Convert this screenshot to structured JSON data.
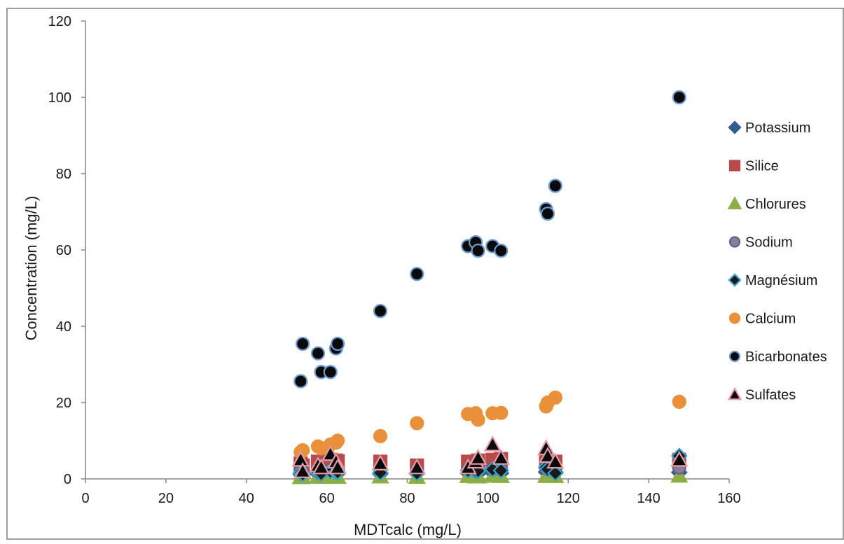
{
  "chart_data": {
    "type": "scatter",
    "title": "",
    "xlabel": "MDTcalc (mg/L)",
    "ylabel": "Concentration (mg/L)",
    "xlim": [
      0,
      160
    ],
    "ylim": [
      0,
      120
    ],
    "xticks": [
      "0",
      "20",
      "40",
      "60",
      "80",
      "100",
      "120",
      "140",
      "160"
    ],
    "yticks": [
      "0",
      "20",
      "40",
      "60",
      "80",
      "100",
      "120"
    ],
    "grid": false,
    "legend_position": "right",
    "x": [
      53.5,
      54.0,
      57.8,
      58.6,
      60.9,
      62.3,
      62.7,
      73.3,
      82.4,
      95.1,
      97.0,
      97.6,
      101.2,
      103.3,
      114.5,
      114.9,
      116.8,
      147.6
    ],
    "series": [
      {
        "name": "Potassium",
        "marker": "diamond",
        "color": "#2e5b91",
        "stroke": "#2e5b91",
        "values": [
          1.2,
          1.0,
          1.3,
          1.1,
          1.5,
          1.2,
          1.4,
          1.3,
          1.4,
          1.5,
          1.3,
          1.4,
          1.6,
          1.5,
          1.8,
          1.6,
          1.7,
          1.7
        ]
      },
      {
        "name": "Silice",
        "marker": "square",
        "color": "#b94a4a",
        "stroke": "#b94a4a",
        "values": [
          4.0,
          3.5,
          4.5,
          4.2,
          5.0,
          4.8,
          4.6,
          4.5,
          3.5,
          4.5,
          4.5,
          4.8,
          5.0,
          5.2,
          5.0,
          4.6,
          4.5,
          5.0
        ]
      },
      {
        "name": "Chlorures",
        "marker": "triangle",
        "color": "#8cae45",
        "stroke": "#8cae45",
        "values": [
          0.4,
          0.5,
          0.6,
          0.5,
          0.7,
          0.6,
          0.5,
          0.6,
          0.5,
          0.7,
          0.6,
          0.6,
          0.8,
          0.7,
          0.8,
          0.7,
          0.7,
          0.8
        ]
      },
      {
        "name": "Sodium",
        "marker": "circle",
        "color": "#8a7ea0",
        "stroke": "#6a5e80",
        "values": [
          2.0,
          1.8,
          2.2,
          2.0,
          2.4,
          2.1,
          2.3,
          2.2,
          2.1,
          2.5,
          2.3,
          2.4,
          2.6,
          2.5,
          2.8,
          2.6,
          2.7,
          3.0
        ]
      },
      {
        "name": "Magnésium",
        "marker": "diamond",
        "color": "#1a1a1a",
        "stroke": "#3aa0c8",
        "values": [
          1.5,
          1.3,
          1.6,
          1.4,
          2.0,
          1.7,
          1.8,
          1.6,
          1.5,
          2.2,
          2.0,
          2.1,
          2.5,
          2.2,
          3.0,
          2.5,
          1.5,
          6.0
        ]
      },
      {
        "name": "Calcium",
        "marker": "circle",
        "color": "#e8913a",
        "stroke": "#e8913a",
        "values": [
          7.0,
          7.5,
          8.5,
          8.0,
          9.0,
          9.5,
          10.0,
          11.2,
          14.6,
          17.0,
          17.2,
          15.5,
          17.2,
          17.3,
          19.0,
          20.0,
          21.3,
          20.2
        ]
      },
      {
        "name": "Bicarbonates",
        "marker": "circle",
        "color": "#0a0a0a",
        "stroke": "#6f9bd0",
        "values": [
          25.6,
          35.4,
          32.9,
          28.0,
          28.0,
          34.2,
          35.4,
          44.0,
          53.7,
          61.0,
          62.0,
          59.8,
          61.0,
          59.8,
          70.7,
          69.5,
          76.8,
          100.0
        ]
      },
      {
        "name": "Sulfates",
        "marker": "triangle",
        "color": "#0a0a0a",
        "stroke": "#e39aa6",
        "values": [
          5.0,
          2.0,
          3.5,
          3.0,
          6.5,
          4.5,
          3.0,
          4.0,
          3.0,
          3.0,
          4.5,
          5.5,
          9.0,
          5.5,
          8.0,
          6.0,
          4.5,
          5.0
        ]
      }
    ]
  }
}
